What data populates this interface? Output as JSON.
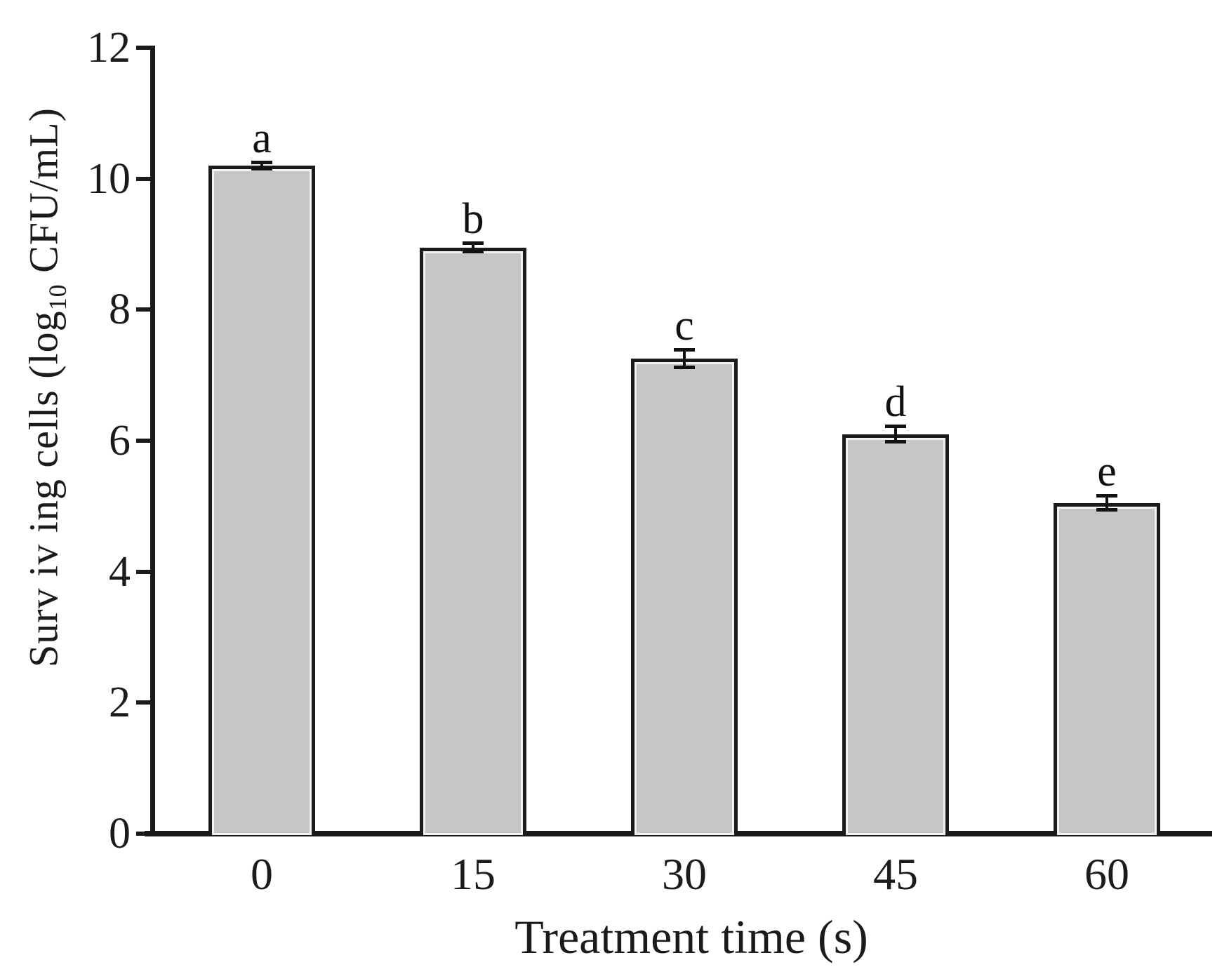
{
  "chart_data": {
    "type": "bar",
    "title": "",
    "xlabel": "Treatment time (s)",
    "ylabel": "Surviving cells (log10 CFU/mL)",
    "ylabel_display": {
      "prefix": "Surv iv ing cells (log",
      "subscript": "10",
      "suffix": " CFU/mL)"
    },
    "categories": [
      "0",
      "15",
      "30",
      "45",
      "60"
    ],
    "values": [
      10.2,
      8.95,
      7.25,
      6.1,
      5.05
    ],
    "error_bars": [
      0.05,
      0.07,
      0.14,
      0.12,
      0.11
    ],
    "significance_letters": [
      "a",
      "b",
      "c",
      "d",
      "e"
    ],
    "ylim": [
      0,
      12
    ],
    "yticks": [
      0,
      2,
      4,
      6,
      8,
      10,
      12
    ],
    "grid": false,
    "legend": "none",
    "colors": {
      "bar_fill": "#c6c6c6",
      "bar_border": "#1b1b1b",
      "axis": "#1b1b1b",
      "background": "#ffffff",
      "text": "#1b1b1b"
    }
  }
}
